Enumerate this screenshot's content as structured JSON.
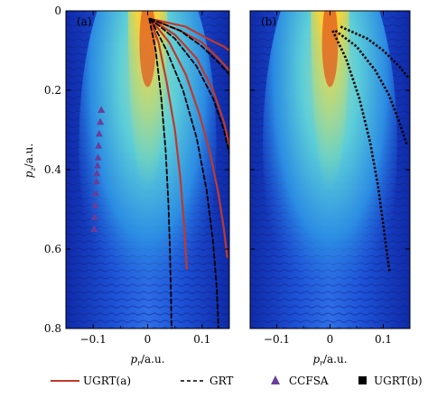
{
  "chart_data": [
    {
      "type": "line",
      "panel_label": "(a)",
      "xlabel": "p_r/a.u.",
      "ylabel": "p_z/a.u.",
      "xlim": [
        -0.15,
        0.15
      ],
      "ylim": [
        0.8,
        0
      ],
      "x_ticks": [
        -0.1,
        0,
        0.1
      ],
      "y_ticks": [
        0,
        0.2,
        0.4,
        0.6,
        0.8
      ],
      "x_tick_labels": [
        "−0.1",
        "0",
        "0.1"
      ],
      "y_tick_labels": [
        "0",
        "0.2",
        "0.4",
        "0.6",
        "0.8"
      ],
      "background": "heatmap",
      "series": [
        {
          "name": "UGRT(a)",
          "style": "solid",
          "color": "#c0392b",
          "lines": [
            [
              [
                0.005,
                0.02
              ],
              [
                0.02,
                0.08
              ],
              [
                0.035,
                0.18
              ],
              [
                0.05,
                0.3
              ],
              [
                0.06,
                0.42
              ],
              [
                0.067,
                0.54
              ],
              [
                0.072,
                0.65
              ]
            ],
            [
              [
                0.005,
                0.02
              ],
              [
                0.04,
                0.08
              ],
              [
                0.07,
                0.16
              ],
              [
                0.095,
                0.26
              ],
              [
                0.115,
                0.36
              ],
              [
                0.13,
                0.46
              ],
              [
                0.14,
                0.55
              ],
              [
                0.146,
                0.62
              ]
            ],
            [
              [
                0.005,
                0.02
              ],
              [
                0.05,
                0.06
              ],
              [
                0.09,
                0.12
              ],
              [
                0.12,
                0.2
              ],
              [
                0.14,
                0.28
              ],
              [
                0.15,
                0.34
              ]
            ],
            [
              [
                0.005,
                0.02
              ],
              [
                0.06,
                0.05
              ],
              [
                0.1,
                0.08
              ],
              [
                0.13,
                0.12
              ],
              [
                0.15,
                0.15
              ]
            ],
            [
              [
                0.005,
                0.02
              ],
              [
                0.07,
                0.04
              ],
              [
                0.11,
                0.07
              ],
              [
                0.14,
                0.09
              ],
              [
                0.15,
                0.1
              ]
            ]
          ]
        },
        {
          "name": "GRT",
          "style": "dashed",
          "color": "#000000",
          "lines": [
            [
              [
                0.003,
                0.02
              ],
              [
                0.015,
                0.1
              ],
              [
                0.025,
                0.22
              ],
              [
                0.033,
                0.35
              ],
              [
                0.038,
                0.48
              ],
              [
                0.041,
                0.6
              ],
              [
                0.043,
                0.72
              ],
              [
                0.044,
                0.8
              ]
            ],
            [
              [
                0.005,
                0.02
              ],
              [
                0.035,
                0.1
              ],
              [
                0.065,
                0.2
              ],
              [
                0.09,
                0.32
              ],
              [
                0.108,
                0.45
              ],
              [
                0.12,
                0.58
              ],
              [
                0.127,
                0.7
              ],
              [
                0.13,
                0.8
              ]
            ],
            [
              [
                0.005,
                0.02
              ],
              [
                0.05,
                0.07
              ],
              [
                0.09,
                0.14
              ],
              [
                0.12,
                0.22
              ],
              [
                0.14,
                0.3
              ],
              [
                0.15,
                0.36
              ]
            ],
            [
              [
                0.005,
                0.02
              ],
              [
                0.06,
                0.05
              ],
              [
                0.1,
                0.09
              ],
              [
                0.13,
                0.13
              ],
              [
                0.15,
                0.16
              ]
            ]
          ]
        },
        {
          "name": "CCFSA",
          "style": "marker-triangle",
          "color": "#6a3d9a",
          "points": [
            [
              -0.085,
              0.25
            ],
            [
              -0.087,
              0.28
            ],
            [
              -0.089,
              0.31
            ],
            [
              -0.09,
              0.34
            ],
            [
              -0.091,
              0.37
            ],
            [
              -0.092,
              0.39
            ],
            [
              -0.093,
              0.41
            ],
            [
              -0.094,
              0.43
            ],
            [
              -0.095,
              0.46
            ],
            [
              -0.096,
              0.49
            ],
            [
              -0.097,
              0.52
            ],
            [
              -0.098,
              0.55
            ]
          ]
        }
      ]
    },
    {
      "type": "line",
      "panel_label": "(b)",
      "xlabel": "p_r/a.u.",
      "ylabel": "",
      "xlim": [
        -0.15,
        0.15
      ],
      "ylim": [
        0.8,
        0
      ],
      "x_ticks": [
        -0.1,
        0,
        0.1
      ],
      "x_tick_labels": [
        "−0.1",
        "0",
        "0.1"
      ],
      "background": "heatmap",
      "series": [
        {
          "name": "UGRT(b)",
          "style": "dotted-square",
          "color": "#000000",
          "lines": [
            [
              [
                0.005,
                0.05
              ],
              [
                0.03,
                0.12
              ],
              [
                0.055,
                0.22
              ],
              [
                0.075,
                0.33
              ],
              [
                0.09,
                0.44
              ],
              [
                0.1,
                0.54
              ],
              [
                0.107,
                0.61
              ],
              [
                0.112,
                0.66
              ]
            ],
            [
              [
                0.01,
                0.05
              ],
              [
                0.05,
                0.09
              ],
              [
                0.085,
                0.15
              ],
              [
                0.11,
                0.21
              ],
              [
                0.13,
                0.28
              ],
              [
                0.145,
                0.34
              ]
            ],
            [
              [
                0.02,
                0.04
              ],
              [
                0.07,
                0.07
              ],
              [
                0.1,
                0.1
              ],
              [
                0.13,
                0.14
              ],
              [
                0.148,
                0.17
              ]
            ]
          ]
        }
      ]
    }
  ],
  "legend": {
    "placement": "bottom",
    "items": [
      {
        "label": "UGRT(a)",
        "style": "solid",
        "color": "#c0392b"
      },
      {
        "label": "GRT",
        "style": "dashed",
        "color": "#000000"
      },
      {
        "label": "CCFSA",
        "style": "triangle",
        "color": "#6a3d9a"
      },
      {
        "label": "UGRT(b)",
        "style": "square",
        "color": "#000000"
      }
    ]
  },
  "colors": {
    "heat_low": "#1238c8",
    "heat_mid": "#39c9e6",
    "heat_high": "#f39b1a",
    "heat_core": "#d9361c",
    "ugrt_a": "#c0392b",
    "ccfsa": "#6a3d9a"
  }
}
